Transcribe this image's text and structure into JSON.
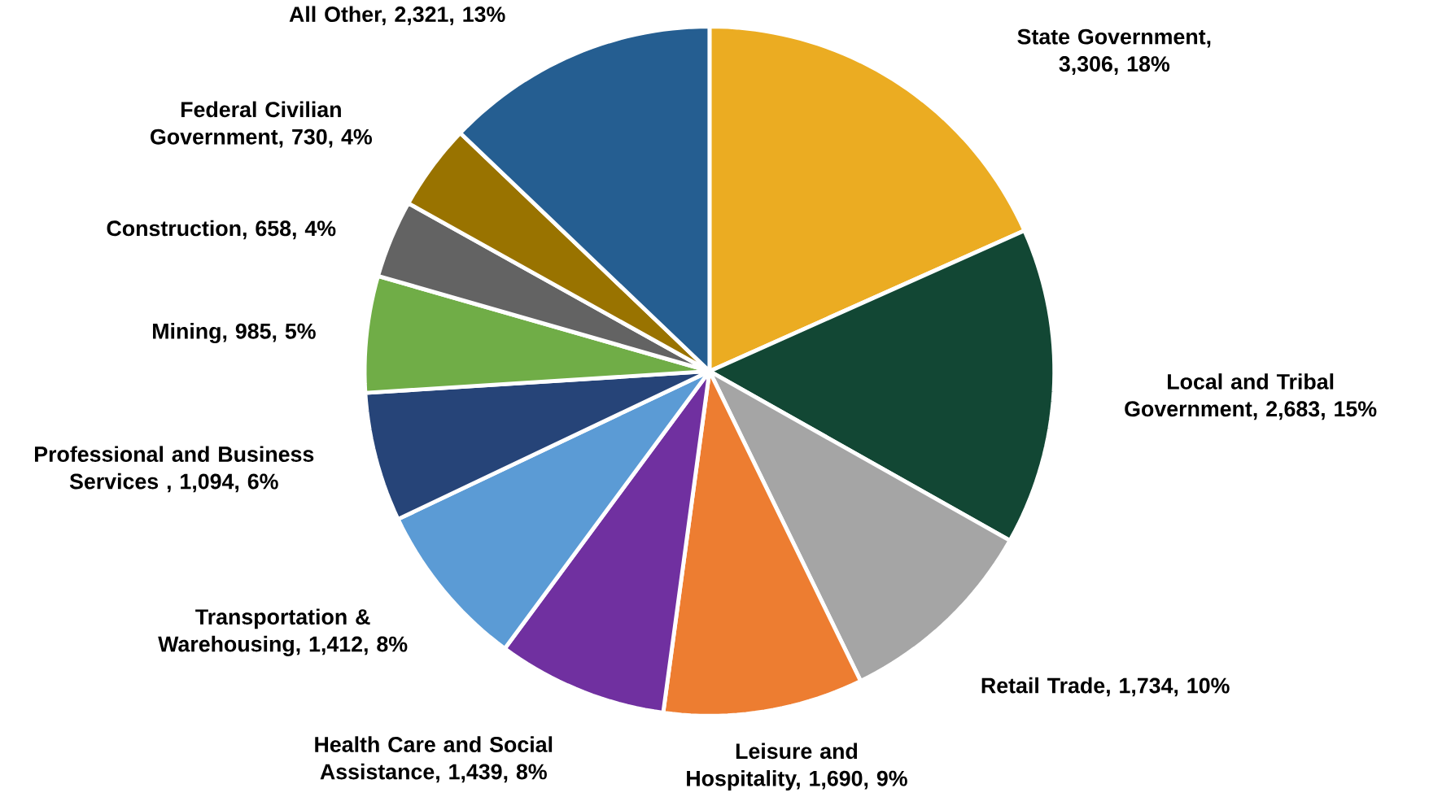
{
  "chart_data": {
    "type": "pie",
    "categories": [
      "State Government, 3,306, 18%",
      "Local and Tribal Government, 2,683, 15%",
      "Retail Trade, 1,734, 10%",
      "Leisure and Hospitality, 1,690, 9%",
      "Health Care and Social Assistance, 1,439, 8%",
      "Transportation & Warehousing, 1,412, 8%",
      "Professional and Business Services , 1,094, 6%",
      "Mining, 985, 5%",
      "Construction, 658, 4%",
      "Federal Civilian Government, 730, 4%",
      "All Other, 2,321, 13%"
    ],
    "values": [
      3306,
      2683,
      1734,
      1690,
      1439,
      1412,
      1094,
      985,
      658,
      730,
      2321
    ],
    "colors": [
      "#ebac22",
      "#124734",
      "#a5a5a5",
      "#ed7d31",
      "#7030a0",
      "#5b9bd5",
      "#264478",
      "#70ad47",
      "#636363",
      "#997300",
      "#255e91"
    ]
  }
}
